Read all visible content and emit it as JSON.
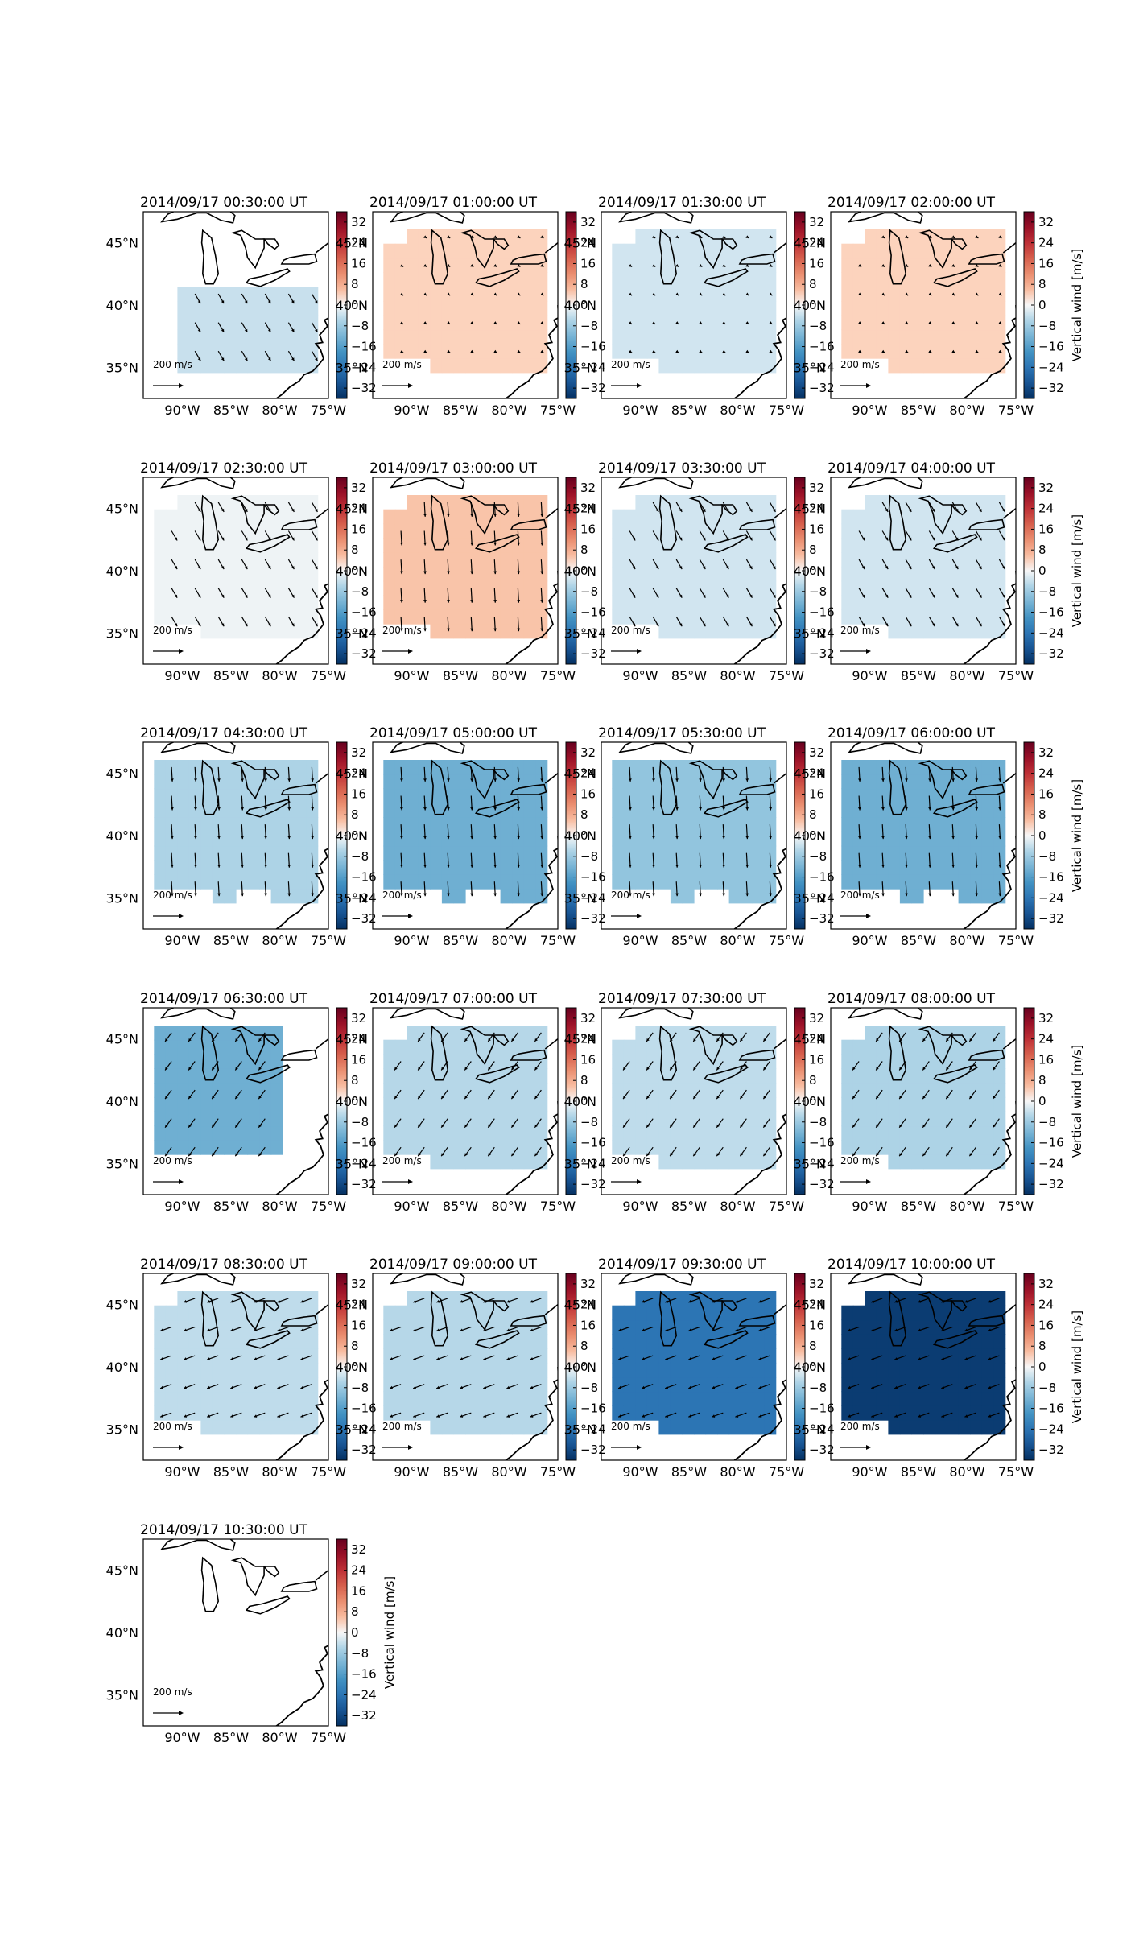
{
  "figure": {
    "colorbar_label": "Vertical wind [m/s]",
    "colorbar_ticks": [
      32,
      24,
      16,
      8,
      0,
      -8,
      -16,
      -24,
      -32
    ],
    "colorbar_tick_labels": [
      "32",
      "24",
      "16",
      "8",
      "0",
      "−8",
      "−16",
      "−24",
      "−32"
    ],
    "lat_ticks": [
      "45°N",
      "40°N",
      "35°N"
    ],
    "lon_ticks": [
      "90°W",
      "85°W",
      "80°W",
      "75°W"
    ],
    "scale_arrow_label": "200 m/s",
    "colormap": {
      "low": "#053061",
      "mid": "#f7f7f7",
      "high": "#67001f"
    }
  },
  "chart_data": {
    "type": "heatmap",
    "variable": "Vertical wind",
    "units": "m/s",
    "value_range": [
      -36,
      36
    ],
    "lon_range": [
      -94,
      -75
    ],
    "lat_range": [
      32.5,
      47.5
    ],
    "panels": [
      {
        "title": "2014/09/17 00:30:00 UT",
        "value": -3,
        "region": "south",
        "arrow": "se"
      },
      {
        "title": "2014/09/17 01:00:00 UT",
        "value": 3,
        "region": "full",
        "arrow": "small"
      },
      {
        "title": "2014/09/17 01:30:00 UT",
        "value": -2,
        "region": "full",
        "arrow": "small"
      },
      {
        "title": "2014/09/17 02:00:00 UT",
        "value": 3,
        "region": "full",
        "arrow": "small"
      },
      {
        "title": "2014/09/17 02:30:00 UT",
        "value": -0.5,
        "region": "full",
        "arrow": "se"
      },
      {
        "title": "2014/09/17 03:00:00 UT",
        "value": 5,
        "region": "full",
        "arrow": "s"
      },
      {
        "title": "2014/09/17 03:30:00 UT",
        "value": -2,
        "region": "full",
        "arrow": "se"
      },
      {
        "title": "2014/09/17 04:00:00 UT",
        "value": -2,
        "region": "full",
        "arrow": "se"
      },
      {
        "title": "2014/09/17 04:30:00 UT",
        "value": -6,
        "region": "lobed",
        "arrow": "s"
      },
      {
        "title": "2014/09/17 05:00:00 UT",
        "value": -13,
        "region": "lobed",
        "arrow": "s"
      },
      {
        "title": "2014/09/17 05:30:00 UT",
        "value": -9,
        "region": "lobed",
        "arrow": "s"
      },
      {
        "title": "2014/09/17 06:00:00 UT",
        "value": -13,
        "region": "lobed",
        "arrow": "s"
      },
      {
        "title": "2014/09/17 06:30:00 UT",
        "value": -13,
        "region": "west",
        "arrow": "sw"
      },
      {
        "title": "2014/09/17 07:00:00 UT",
        "value": -5,
        "region": "full",
        "arrow": "sw"
      },
      {
        "title": "2014/09/17 07:30:00 UT",
        "value": -4,
        "region": "full",
        "arrow": "sw"
      },
      {
        "title": "2014/09/17 08:00:00 UT",
        "value": -6,
        "region": "full",
        "arrow": "sw"
      },
      {
        "title": "2014/09/17 08:30:00 UT",
        "value": -4,
        "region": "full",
        "arrow": "w"
      },
      {
        "title": "2014/09/17 09:00:00 UT",
        "value": -5,
        "region": "full",
        "arrow": "w"
      },
      {
        "title": "2014/09/17 09:30:00 UT",
        "value": -24,
        "region": "full",
        "arrow": "w"
      },
      {
        "title": "2014/09/17 10:00:00 UT",
        "value": -34,
        "region": "full",
        "arrow": "w"
      },
      {
        "title": "2014/09/17 10:30:00 UT",
        "value": null,
        "region": "none",
        "arrow": "none"
      }
    ]
  }
}
